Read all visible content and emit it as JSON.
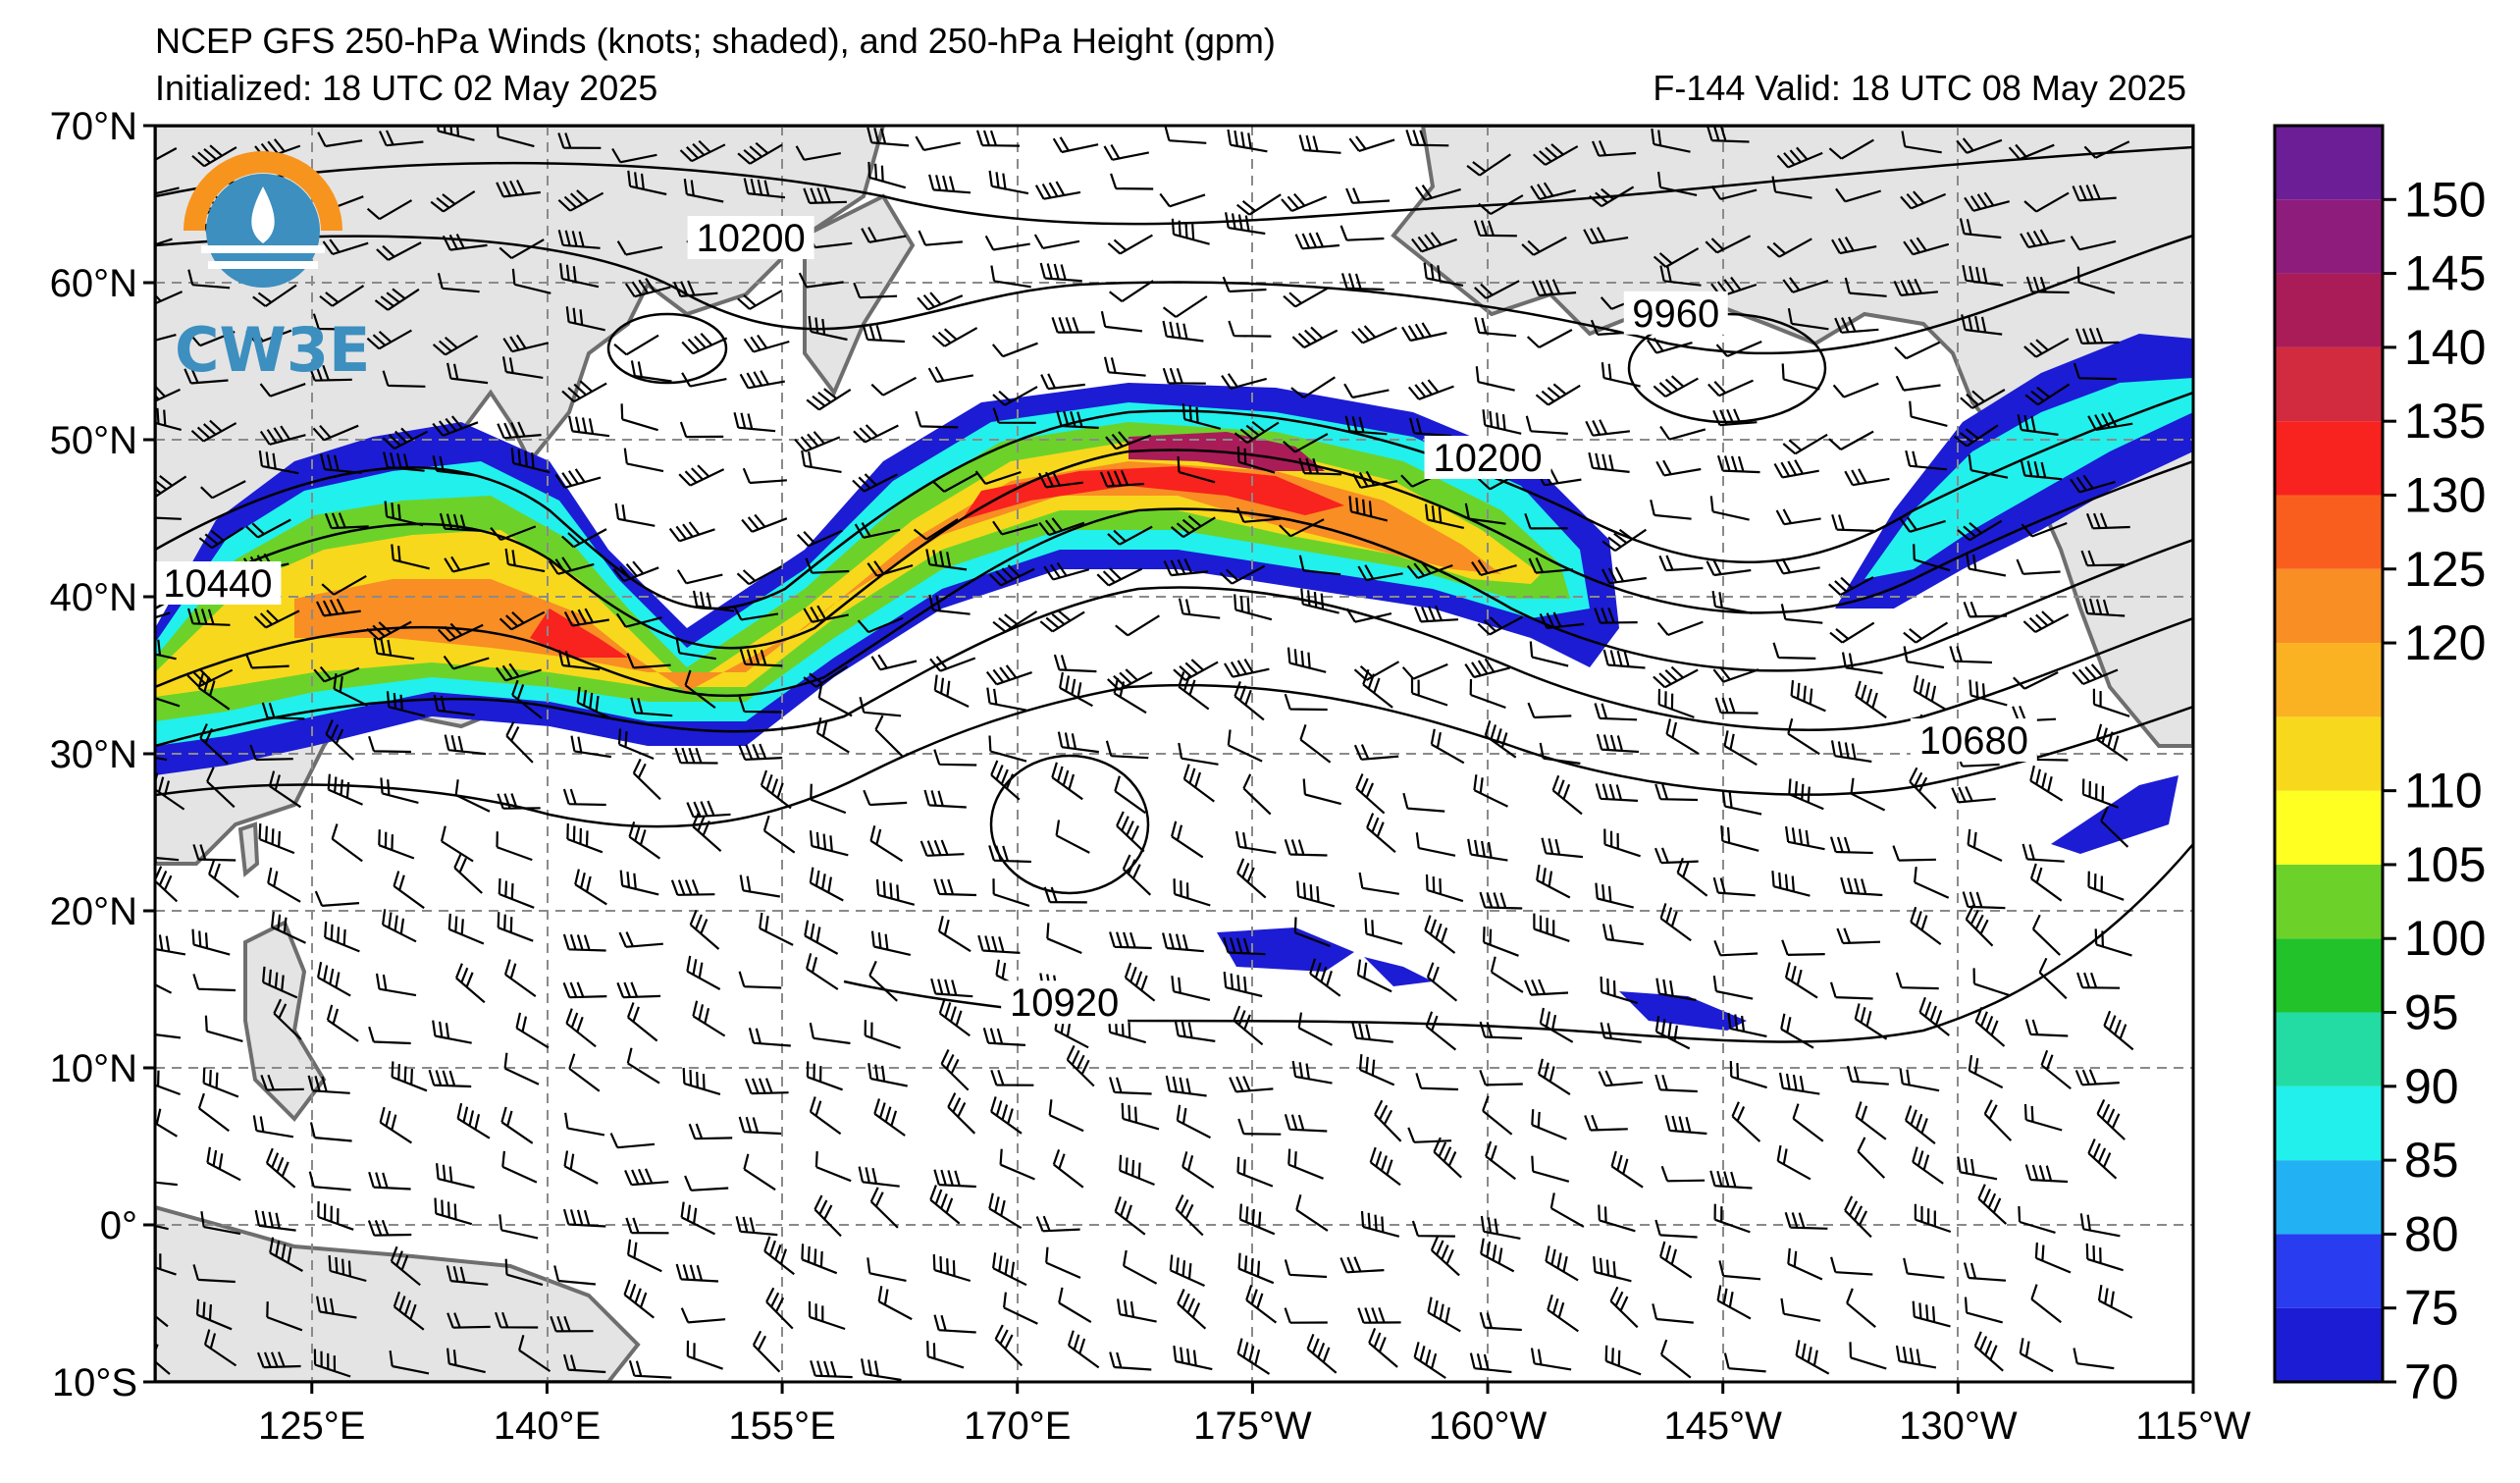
{
  "header": {
    "title": "NCEP GFS 250-hPa Winds (knots; shaded), and 250-hPa Height (gpm)",
    "initialized": "Initialized: 18 UTC 02 May 2025",
    "valid": "F-144  Valid: 18 UTC 08 May 2025"
  },
  "logo": {
    "text": "CW3E",
    "icon": "cw3e-logo-icon"
  },
  "map": {
    "lat_labels": [
      "70°N",
      "60°N",
      "50°N",
      "40°N",
      "30°N",
      "20°N",
      "10°N",
      "0°",
      "10°S"
    ],
    "lon_labels": [
      "125°E",
      "140°E",
      "155°E",
      "170°E",
      "175°W",
      "160°W",
      "145°W",
      "130°W",
      "115°W"
    ],
    "lat_values": [
      70,
      60,
      50,
      40,
      30,
      20,
      10,
      0,
      -10
    ],
    "lon_values": [
      125,
      140,
      155,
      170,
      185,
      200,
      215,
      230,
      245
    ],
    "lon_range_east": [
      115,
      245
    ],
    "lat_range": [
      -10,
      70
    ],
    "gridlines": "dashed"
  },
  "contours": {
    "labels": [
      "10200",
      "9960",
      "10200",
      "10440",
      "10680",
      "10920"
    ],
    "label_lonlat": [
      [
        153,
        62.5
      ],
      [
        212,
        57.7
      ],
      [
        200,
        48.5
      ],
      [
        119,
        40.5
      ],
      [
        231,
        30.5
      ],
      [
        173,
        13.8
      ]
    ]
  },
  "colorbar": {
    "labels": [
      "70",
      "75",
      "80",
      "85",
      "90",
      "95",
      "100",
      "105",
      "110",
      "120",
      "125",
      "130",
      "135",
      "140",
      "145",
      "150"
    ],
    "levels": [
      70,
      75,
      80,
      85,
      90,
      95,
      100,
      105,
      110,
      115,
      120,
      125,
      130,
      135,
      140,
      145,
      150,
      155
    ],
    "colors": [
      "#1c1cd4",
      "#2a3cf0",
      "#22b2f4",
      "#22f0ec",
      "#22dca4",
      "#22c22a",
      "#6cd22a",
      "#ffff22",
      "#f8d81c",
      "#fbb222",
      "#f88e24",
      "#fa5e1e",
      "#f8221e",
      "#d22a3e",
      "#a91c58",
      "#8e1c7c",
      "#6c1e96"
    ]
  },
  "colors": {
    "land": "#e4e4e4",
    "coast": "#6e6e6e",
    "grid": "#8a8a8a"
  }
}
